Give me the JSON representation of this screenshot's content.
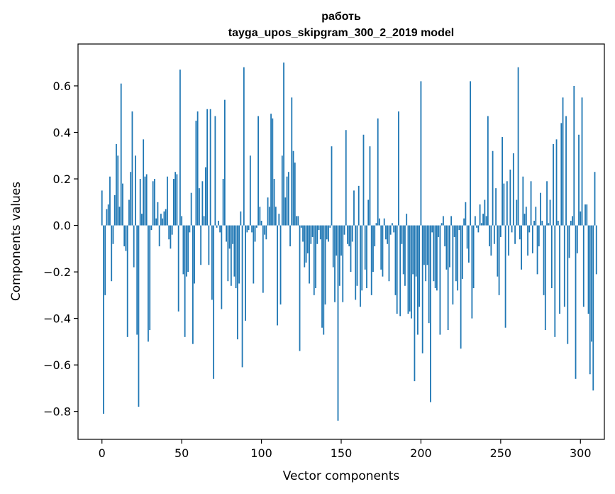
{
  "chart_data": {
    "type": "bar",
    "title": "работь",
    "subtitle": "tayga_upos_skipgram_300_2_2019 model",
    "xlabel": "Vector components",
    "ylabel": "Components values",
    "xlim": [
      -15,
      315
    ],
    "ylim": [
      -0.92,
      0.78
    ],
    "xticks": [
      0,
      50,
      100,
      150,
      200,
      250,
      300
    ],
    "xtick_labels": [
      "0",
      "50",
      "100",
      "150",
      "200",
      "250",
      "300"
    ],
    "yticks": [
      -0.8,
      -0.6,
      -0.4,
      -0.2,
      0.0,
      0.2,
      0.4,
      0.6
    ],
    "ytick_labels": [
      "−0.8",
      "−0.6",
      "−0.4",
      "−0.2",
      "0.0",
      "0.2",
      "0.4",
      "0.6"
    ],
    "grid": false,
    "bar_color": "#1f77b4",
    "values": [
      0.15,
      -0.81,
      -0.3,
      0.07,
      0.09,
      0.21,
      -0.24,
      -0.08,
      0.13,
      0.35,
      0.3,
      0.08,
      0.61,
      0.18,
      -0.09,
      -0.11,
      -0.48,
      0.11,
      0.23,
      0.49,
      -0.18,
      0.3,
      -0.47,
      -0.78,
      0.2,
      0.05,
      0.37,
      0.21,
      0.22,
      -0.5,
      -0.45,
      -0.02,
      0.19,
      0.2,
      0.03,
      0.1,
      -0.09,
      0.05,
      0.03,
      0.06,
      0.07,
      0.21,
      -0.06,
      -0.1,
      -0.04,
      0.2,
      0.23,
      0.22,
      -0.37,
      0.67,
      0.04,
      -0.21,
      -0.48,
      -0.22,
      -0.2,
      -0.03,
      0.14,
      -0.51,
      -0.25,
      0.45,
      0.49,
      0.16,
      -0.17,
      0.19,
      0.04,
      0.25,
      0.5,
      -0.17,
      0.5,
      -0.32,
      -0.66,
      0.47,
      -0.01,
      0.02,
      -0.03,
      -0.36,
      0.2,
      0.54,
      -0.07,
      -0.24,
      -0.1,
      -0.26,
      -0.08,
      -0.22,
      -0.27,
      -0.49,
      -0.25,
      0.06,
      -0.61,
      0.68,
      -0.41,
      -0.03,
      -0.02,
      0.3,
      -0.03,
      -0.25,
      -0.07,
      -0.01,
      0.47,
      0.08,
      0.02,
      -0.29,
      -0.04,
      -0.06,
      0.12,
      0.08,
      0.48,
      0.46,
      0.2,
      0.08,
      -0.43,
      0.05,
      -0.34,
      0.3,
      0.7,
      0.12,
      0.21,
      0.23,
      -0.09,
      0.55,
      0.32,
      0.27,
      0.04,
      0.04,
      -0.54,
      -0.01,
      -0.07,
      -0.18,
      -0.16,
      -0.12,
      -0.25,
      -0.08,
      -0.05,
      -0.3,
      -0.27,
      -0.08,
      -0.02,
      -0.06,
      -0.44,
      -0.47,
      -0.34,
      -0.06,
      -0.07,
      -0.01,
      0.34,
      -0.18,
      -0.33,
      -0.13,
      -0.84,
      -0.26,
      -0.13,
      -0.33,
      -0.04,
      0.41,
      -0.08,
      -0.09,
      -0.2,
      -0.07,
      0.15,
      -0.32,
      -0.26,
      0.17,
      -0.35,
      -0.28,
      0.39,
      -0.19,
      -0.27,
      0.11,
      0.34,
      -0.3,
      -0.2,
      -0.09,
      0.01,
      0.46,
      0.03,
      -0.19,
      -0.22,
      0.03,
      -0.06,
      -0.08,
      -0.24,
      -0.04,
      0.01,
      -0.03,
      -0.3,
      -0.38,
      0.49,
      -0.39,
      -0.08,
      -0.21,
      -0.26,
      0.05,
      -0.38,
      -0.37,
      -0.4,
      -0.21,
      -0.67,
      -0.22,
      -0.47,
      -0.35,
      0.62,
      -0.55,
      -0.17,
      -0.24,
      -0.17,
      -0.42,
      -0.76,
      -0.03,
      -0.24,
      -0.27,
      -0.28,
      -0.05,
      -0.47,
      0.01,
      0.04,
      -0.09,
      -0.19,
      -0.45,
      -0.18,
      0.04,
      -0.34,
      -0.05,
      -0.24,
      -0.28,
      -0.02,
      -0.53,
      -0.23,
      0.03,
      0.1,
      -0.1,
      -0.16,
      0.62,
      -0.4,
      -0.27,
      0.04,
      -0.01,
      -0.03,
      0.09,
      0.01,
      0.05,
      0.11,
      0.04,
      0.47,
      -0.09,
      -0.13,
      0.32,
      -0.08,
      0.16,
      -0.22,
      -0.3,
      -0.05,
      0.38,
      0.18,
      -0.44,
      0.19,
      -0.13,
      0.24,
      -0.03,
      0.31,
      -0.08,
      0.11,
      0.68,
      -0.06,
      -0.19,
      0.21,
      0.05,
      0.08,
      -0.13,
      -0.03,
      0.19,
      -0.12,
      0.02,
      0.08,
      -0.21,
      -0.09,
      0.14,
      0.02,
      -0.3,
      -0.45,
      0.19,
      0.01,
      0.11,
      -0.27,
      0.35,
      -0.48,
      0.37,
      0.02,
      -0.38,
      0.44,
      0.55,
      -0.35,
      0.47,
      -0.51,
      -0.14,
      0.02,
      0.04,
      0.6,
      -0.66,
      -0.12,
      0.39,
      0.06,
      0.55,
      -0.35,
      0.09,
      0.09,
      -0.38,
      -0.64,
      -0.5,
      -0.71,
      0.23,
      -0.21
    ]
  }
}
